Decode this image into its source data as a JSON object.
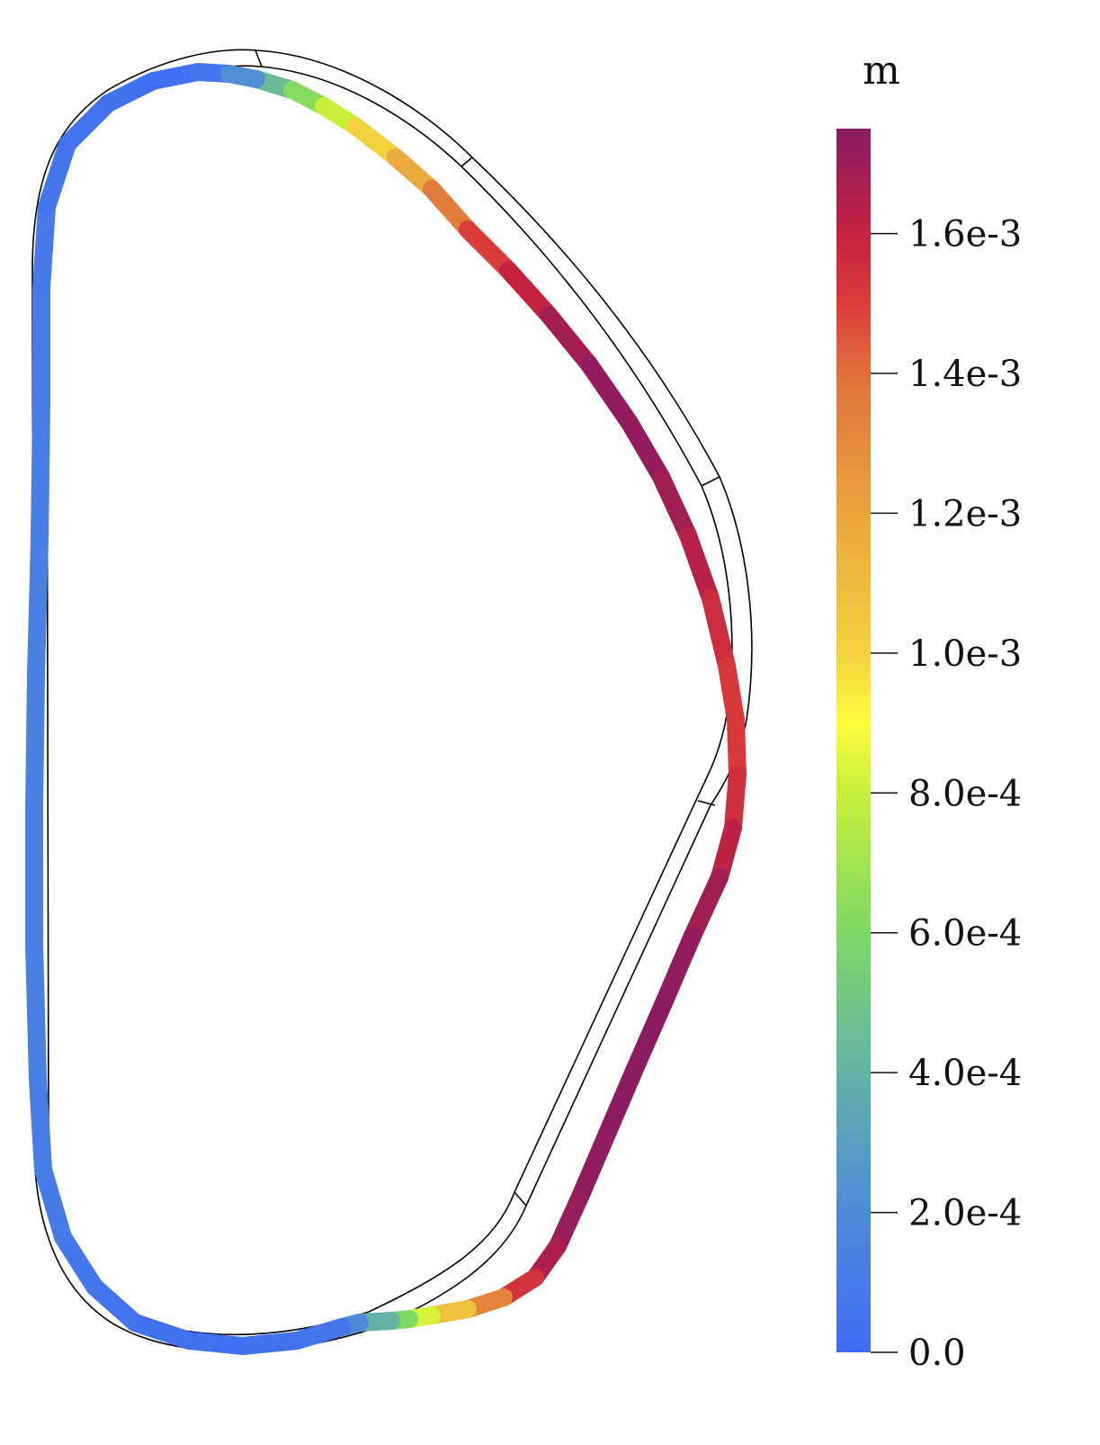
{
  "colorbar": {
    "unit": "m",
    "min_value": 0.0,
    "max_value": 0.00175,
    "ticks": [
      {
        "value": 0.0,
        "label": "0.0"
      },
      {
        "value": 0.0002,
        "label": "2.0e-4"
      },
      {
        "value": 0.0004,
        "label": "4.0e-4"
      },
      {
        "value": 0.0006,
        "label": "6.0e-4"
      },
      {
        "value": 0.0008,
        "label": "8.0e-4"
      },
      {
        "value": 0.001,
        "label": "1.0e-3"
      },
      {
        "value": 0.0012,
        "label": "1.2e-3"
      },
      {
        "value": 0.0014,
        "label": "1.4e-3"
      },
      {
        "value": 0.0016,
        "label": "1.6e-3"
      }
    ],
    "colormap": [
      {
        "value": 0.0,
        "color": "#3f6cf5"
      },
      {
        "value": 0.0002,
        "color": "#4f8ad9"
      },
      {
        "value": 0.0004,
        "color": "#62b2a6"
      },
      {
        "value": 0.0006,
        "color": "#7dd864"
      },
      {
        "value": 0.0008,
        "color": "#c6f03a"
      },
      {
        "value": 0.0009,
        "color": "#fdfd3a"
      },
      {
        "value": 0.001,
        "color": "#f2d23e"
      },
      {
        "value": 0.0012,
        "color": "#eaa43c"
      },
      {
        "value": 0.0014,
        "color": "#e0703a"
      },
      {
        "value": 0.0015,
        "color": "#db3c3a"
      },
      {
        "value": 0.0016,
        "color": "#c4233f"
      },
      {
        "value": 0.00175,
        "color": "#8a1b63"
      }
    ]
  }
}
